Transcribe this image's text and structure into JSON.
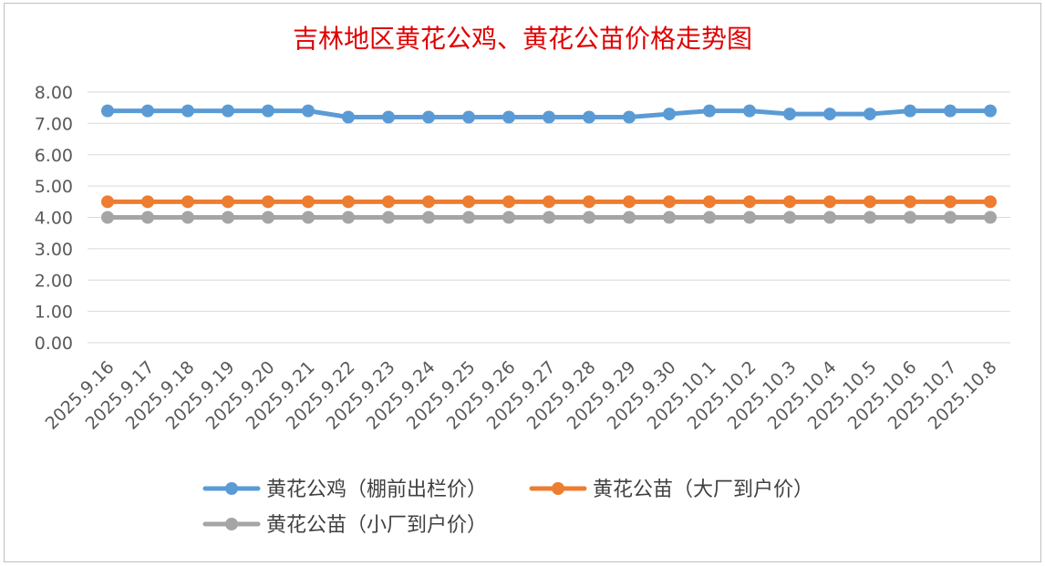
{
  "chart_data": {
    "type": "line",
    "title": "吉林地区黄花公鸡、黄花公苗价格走势图",
    "xlabel": "",
    "ylabel": "",
    "ylim": [
      0,
      8
    ],
    "yticks": [
      "0.00",
      "1.00",
      "2.00",
      "3.00",
      "4.00",
      "5.00",
      "6.00",
      "7.00",
      "8.00"
    ],
    "grid": true,
    "legend_position": "bottom",
    "categories": [
      "2025.9.16",
      "2025.9.17",
      "2025.9.18",
      "2025.9.19",
      "2025.9.20",
      "2025.9.21",
      "2025.9.22",
      "2025.9.23",
      "2025.9.24",
      "2025.9.25",
      "2025.9.26",
      "2025.9.27",
      "2025.9.28",
      "2025.9.29",
      "2025.9.30",
      "2025.10.1",
      "2025.10.2",
      "2025.10.3",
      "2025.10.4",
      "2025.10.5",
      "2025.10.6",
      "2025.10.7",
      "2025.10.8"
    ],
    "series": [
      {
        "name": "黄花公鸡（棚前出栏价）",
        "color": "#5b9bd5",
        "values": [
          7.4,
          7.4,
          7.4,
          7.4,
          7.4,
          7.4,
          7.2,
          7.2,
          7.2,
          7.2,
          7.2,
          7.2,
          7.2,
          7.2,
          7.3,
          7.4,
          7.4,
          7.3,
          7.3,
          7.3,
          7.4,
          7.4,
          7.4
        ]
      },
      {
        "name": "黄花公苗（大厂到户价）",
        "color": "#ed7d31",
        "values": [
          4.5,
          4.5,
          4.5,
          4.5,
          4.5,
          4.5,
          4.5,
          4.5,
          4.5,
          4.5,
          4.5,
          4.5,
          4.5,
          4.5,
          4.5,
          4.5,
          4.5,
          4.5,
          4.5,
          4.5,
          4.5,
          4.5,
          4.5
        ]
      },
      {
        "name": "黄花公苗（小厂到户价）",
        "color": "#a5a5a5",
        "values": [
          4,
          4,
          4,
          4,
          4,
          4,
          4,
          4,
          4,
          4,
          4,
          4,
          4,
          4,
          4,
          4,
          4,
          4,
          4,
          4,
          4,
          4,
          4
        ]
      }
    ]
  }
}
